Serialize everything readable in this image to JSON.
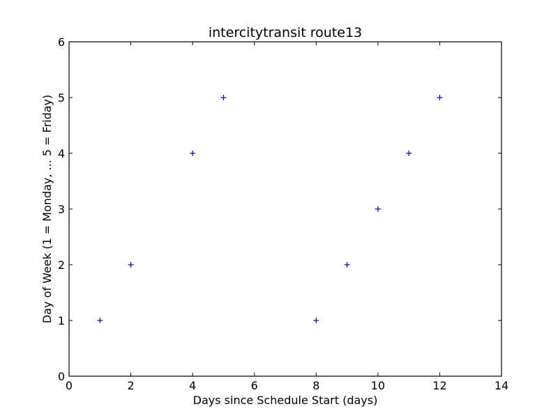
{
  "chart_data": {
    "type": "scatter",
    "title": "intercitytransit route13",
    "xlabel": "Days since Schedule Start (days)",
    "ylabel": "Day of Week (1 = Monday, ... 5 = Friday)",
    "xlim": [
      0,
      14
    ],
    "ylim": [
      0,
      6
    ],
    "xticks": [
      0,
      2,
      4,
      6,
      8,
      10,
      12,
      14
    ],
    "yticks": [
      0,
      1,
      2,
      3,
      4,
      5,
      6
    ],
    "grid": false,
    "marker": "+",
    "marker_color": "#0000cc",
    "series": [
      {
        "x": [
          1,
          2,
          4,
          5,
          8,
          9,
          10,
          11,
          12
        ],
        "y": [
          1,
          2,
          4,
          5,
          1,
          2,
          3,
          4,
          5
        ]
      }
    ]
  }
}
